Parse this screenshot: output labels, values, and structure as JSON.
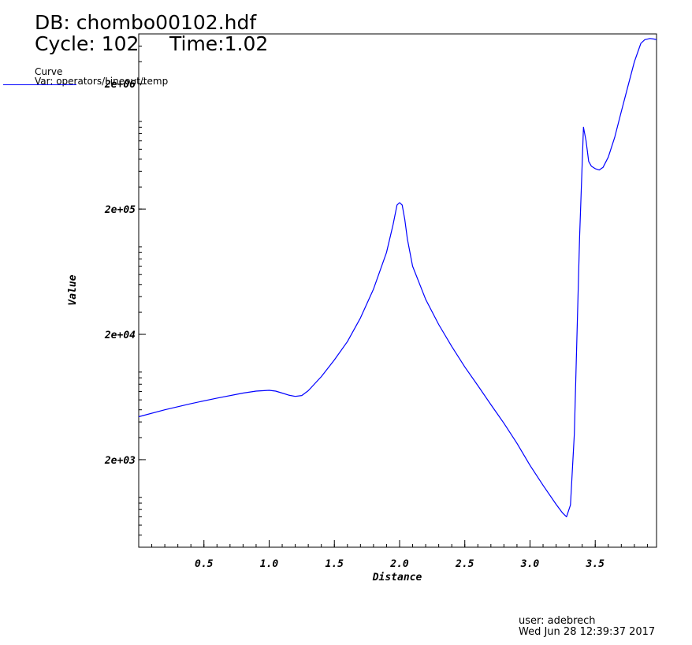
{
  "header": {
    "db_label": "DB: chombo00102.hdf",
    "cycle_label": "Cycle: 102",
    "time_label": "Time:1.02"
  },
  "legend": {
    "title": "Curve",
    "var": "Var: operators/Lineout/temp",
    "line_color": "#0000ff"
  },
  "footer": {
    "user": "user: adebrech",
    "date": "Wed Jun 28 12:39:37 2017"
  },
  "chart_data": {
    "type": "line",
    "xlabel": "Distance",
    "ylabel": "Value",
    "xlim": [
      0.0,
      3.97
    ],
    "ylim": [
      400,
      5000000
    ],
    "yscale": "log",
    "grid": false,
    "legend_position": "top-left",
    "x_ticks": [
      0.5,
      1.0,
      1.5,
      2.0,
      2.5,
      3.0,
      3.5
    ],
    "x_tick_labels": [
      "0.5",
      "1.0",
      "1.5",
      "2.0",
      "2.5",
      "3.0",
      "3.5"
    ],
    "y_ticks": [
      2000,
      20000,
      200000,
      2000000
    ],
    "y_tick_labels": [
      "2e+03",
      "2e+04",
      "2e+05",
      "2e+06"
    ],
    "series": [
      {
        "color": "#0000ff",
        "x": [
          0.0,
          0.2,
          0.4,
          0.6,
          0.8,
          0.9,
          1.0,
          1.05,
          1.1,
          1.15,
          1.2,
          1.25,
          1.3,
          1.4,
          1.5,
          1.6,
          1.7,
          1.8,
          1.9,
          1.95,
          1.98,
          2.0,
          2.02,
          2.04,
          2.06,
          2.1,
          2.2,
          2.3,
          2.4,
          2.5,
          2.6,
          2.7,
          2.8,
          2.9,
          3.0,
          3.1,
          3.2,
          3.25,
          3.28,
          3.31,
          3.34,
          3.38,
          3.41,
          3.43,
          3.45,
          3.47,
          3.5,
          3.53,
          3.56,
          3.6,
          3.65,
          3.7,
          3.75,
          3.8,
          3.85,
          3.88,
          3.92,
          3.95,
          3.97
        ],
        "y": [
          4400,
          5000,
          5600,
          6200,
          6800,
          7050,
          7150,
          7050,
          6800,
          6550,
          6400,
          6500,
          7100,
          9200,
          12500,
          17500,
          27000,
          46000,
          90000,
          150000,
          215000,
          225000,
          215000,
          165000,
          115000,
          70000,
          38000,
          24000,
          16000,
          11000,
          7800,
          5500,
          3900,
          2700,
          1800,
          1250,
          880,
          750,
          700,
          870,
          3200,
          120000,
          900000,
          700000,
          480000,
          440000,
          420000,
          410000,
          430000,
          520000,
          750000,
          1200000,
          1900000,
          3000000,
          4200000,
          4500000,
          4600000,
          4550000,
          4500000
        ]
      }
    ]
  }
}
